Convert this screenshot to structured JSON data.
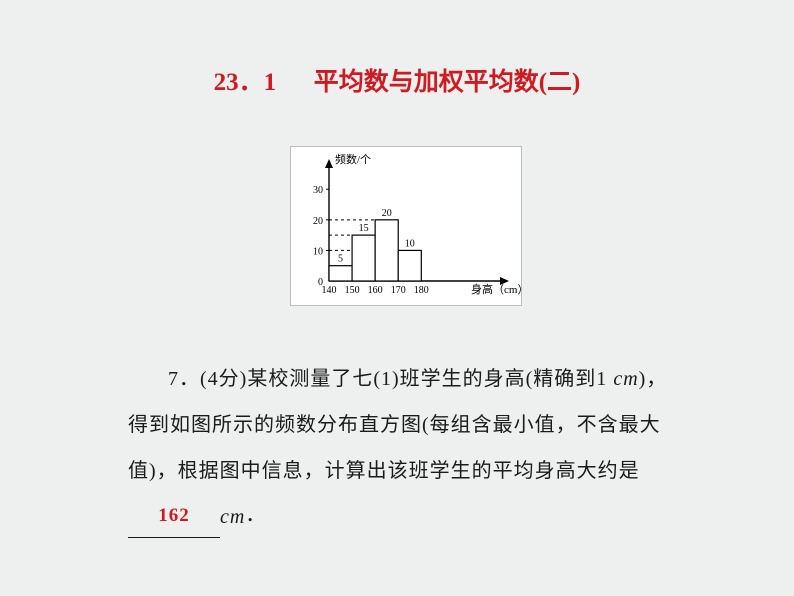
{
  "title": {
    "chapter": "23．1",
    "name": "平均数与加权平均数(二)"
  },
  "chart": {
    "type": "histogram",
    "xlabel_prefix": "身高（",
    "xlabel_unit": "cm",
    "xlabel_suffix": "）",
    "ylabel": "频数/个",
    "ytick_values": [
      0,
      10,
      20,
      30
    ],
    "ytick_labels": [
      "0",
      "10",
      "20",
      "30"
    ],
    "xtick_values": [
      140,
      150,
      160,
      170,
      180
    ],
    "xtick_labels": [
      "140",
      "150",
      "160",
      "170",
      "180"
    ],
    "bars": [
      {
        "x0": 140,
        "x1": 150,
        "value": 5,
        "label": "5"
      },
      {
        "x0": 150,
        "x1": 160,
        "value": 15,
        "label": "15"
      },
      {
        "x0": 160,
        "x1": 170,
        "value": 20,
        "label": "20"
      },
      {
        "x0": 170,
        "x1": 180,
        "value": 10,
        "label": "10"
      }
    ],
    "xlim": [
      140,
      205
    ],
    "ylim": [
      0,
      34
    ],
    "axis_color": "#000000",
    "bar_fill": "#ffffff",
    "bar_stroke": "#000000",
    "bar_stroke_width": 1.2,
    "tick_font_size": 10,
    "label_font_size": 11,
    "bar_label_font_size": 10,
    "dash_color": "#000000",
    "background": "#ffffff"
  },
  "question": {
    "number": "7．",
    "score_open": "(4分)",
    "text1": "某校测量了七(1)班学生的身高(精确到1 ",
    "unit1": "cm",
    "text2": ")，得到如图所示的频数分布直方图(每组含最小值，不含最大值)，根据图中信息，计算出该班学生的平均身高大约是",
    "answer": "162",
    "unit2": "cm",
    "text3": "．"
  }
}
